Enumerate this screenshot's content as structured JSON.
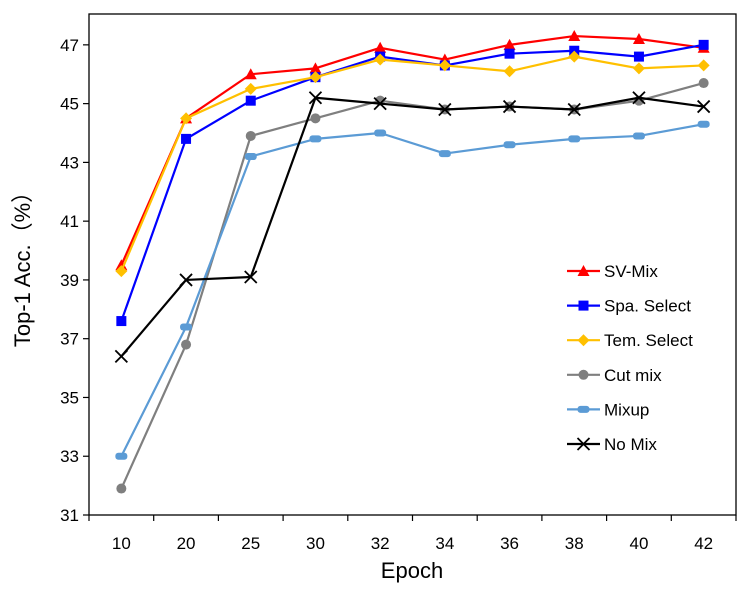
{
  "chart_data": {
    "type": "line",
    "title": "",
    "xlabel": "Epoch",
    "ylabel": "Top-1 Acc.（%）",
    "categories": [
      "10",
      "20",
      "25",
      "30",
      "32",
      "34",
      "36",
      "38",
      "40",
      "42"
    ],
    "ylim": [
      31,
      48
    ],
    "yticks": [
      31,
      33,
      35,
      37,
      39,
      41,
      43,
      45,
      47
    ],
    "grid": false,
    "legend_position": "right-middle",
    "series": [
      {
        "name": "SV-Mix",
        "color": "#ff0000",
        "marker": "triangle",
        "values": [
          39.5,
          44.5,
          46.0,
          46.2,
          46.9,
          46.5,
          47.0,
          47.3,
          47.2,
          46.9
        ]
      },
      {
        "name": "Spa. Select",
        "color": "#0000ff",
        "marker": "square",
        "values": [
          37.6,
          43.8,
          45.1,
          45.9,
          46.6,
          46.3,
          46.7,
          46.8,
          46.6,
          47.0
        ]
      },
      {
        "name": "Tem. Select",
        "color": "#ffc000",
        "marker": "diamond",
        "values": [
          39.3,
          44.5,
          45.5,
          45.9,
          46.5,
          46.3,
          46.1,
          46.6,
          46.2,
          46.3
        ]
      },
      {
        "name": "Cut mix",
        "color": "#7f7f7f",
        "marker": "circle",
        "values": [
          31.9,
          36.8,
          43.9,
          44.5,
          45.1,
          44.8,
          44.9,
          44.8,
          45.1,
          45.7
        ]
      },
      {
        "name": "Mixup",
        "color": "#5b9bd5",
        "marker": "dash",
        "values": [
          33.0,
          37.4,
          43.2,
          43.8,
          44.0,
          43.3,
          43.6,
          43.8,
          43.9,
          44.3
        ]
      },
      {
        "name": "No Mix",
        "color": "#000000",
        "marker": "x",
        "values": [
          36.4,
          39.0,
          39.1,
          45.2,
          45.0,
          44.8,
          44.9,
          44.8,
          45.2,
          44.9
        ]
      }
    ]
  }
}
